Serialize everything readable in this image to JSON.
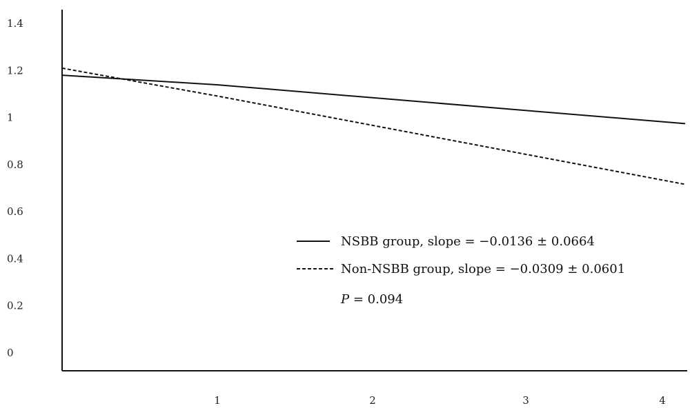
{
  "chart_data": {
    "type": "line",
    "x": [
      0,
      1,
      2,
      3,
      4
    ],
    "xticks": [
      "1",
      "2",
      "3",
      "4"
    ],
    "xlim": [
      0,
      4
    ],
    "ylim": [
      0,
      1.4
    ],
    "yticks": [
      "0",
      "0.2",
      "0.4",
      "0.6",
      "0.8",
      "1",
      "1.2",
      "1.4"
    ],
    "grid": false,
    "legend_position": "bottom-right",
    "series": [
      {
        "name": "NSBB group, slope =  −0.0136 ± 0.0664",
        "style": "solid",
        "color": "#111111",
        "values": [
          1.18,
          1.139,
          1.084,
          1.029,
          0.974
        ]
      },
      {
        "name": "Non-NSBB group, slope =  −0.0309 ± 0.0601",
        "style": "dashed",
        "color": "#111111",
        "values": [
          1.21,
          1.091,
          0.966,
          0.841,
          0.716
        ]
      }
    ],
    "annotation": {
      "italic_part": "P",
      "rest": " = 0.094"
    }
  }
}
